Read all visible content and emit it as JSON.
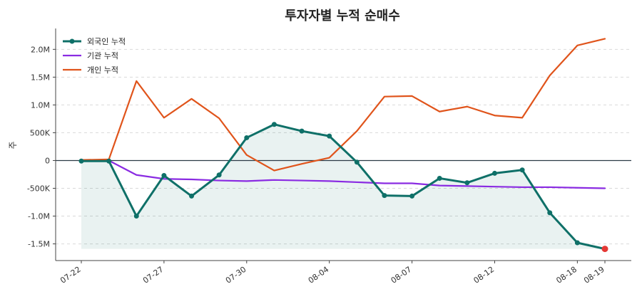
{
  "chart_data": {
    "type": "line",
    "title": "투자자별 누적 순매수",
    "xlabel": "",
    "ylabel": "주",
    "x": [
      "07-22",
      "07-23",
      "07-24",
      "07-27",
      "07-28",
      "07-29",
      "07-30",
      "07-31",
      "08-03",
      "08-04",
      "08-05",
      "08-06",
      "08-07",
      "08-10",
      "08-11",
      "08-12",
      "08-13",
      "08-14",
      "08-18",
      "08-19"
    ],
    "x_tick_labels": [
      "07-22",
      "07-27",
      "07-30",
      "08-04",
      "08-07",
      "08-12",
      "08-18",
      "08-19"
    ],
    "ylim": [
      -1800000,
      2350000
    ],
    "y_ticks": [
      -1500000,
      -1000000,
      -500000,
      0,
      500000,
      1000000,
      1500000,
      2000000
    ],
    "y_tick_labels": [
      "-1.5M",
      "-1.0M",
      "-500K",
      "0",
      "500K",
      "1.0M",
      "1.5M",
      "2.0M"
    ],
    "grid": "horizontal dashed",
    "legend": "top-left",
    "series": [
      {
        "name": "외국인 누적",
        "color": "#0f7068",
        "markers": true,
        "fill": true,
        "values": [
          -10000,
          -10000,
          -1000000,
          -270000,
          -640000,
          -260000,
          410000,
          650000,
          530000,
          440000,
          -30000,
          -630000,
          -640000,
          -320000,
          -400000,
          -230000,
          -170000,
          -940000,
          -1480000,
          -1590000
        ]
      },
      {
        "name": "기관 누적",
        "color": "#8a2be2",
        "markers": false,
        "fill": false,
        "values": [
          0,
          0,
          -260000,
          -330000,
          -340000,
          -360000,
          -370000,
          -350000,
          -360000,
          -370000,
          -390000,
          -410000,
          -410000,
          -450000,
          -460000,
          -470000,
          -480000,
          -480000,
          -490000,
          -500000
        ]
      },
      {
        "name": "개인 누적",
        "color": "#e0541b",
        "markers": false,
        "fill": false,
        "values": [
          10000,
          20000,
          1430000,
          770000,
          1110000,
          760000,
          100000,
          -180000,
          -60000,
          50000,
          530000,
          1150000,
          1160000,
          880000,
          970000,
          810000,
          770000,
          1530000,
          2070000,
          2190000
        ]
      }
    ],
    "last_point_highlight_color": "#e53935"
  }
}
